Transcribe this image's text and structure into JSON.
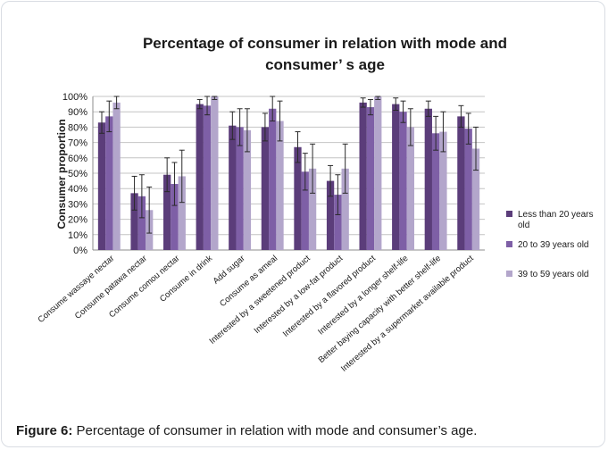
{
  "chart_data": {
    "type": "bar",
    "title": "Percentage of consumer in relation with mode and consumer’ s age",
    "title_lines": [
      "Percentage of consumer in relation with mode and",
      "consumer’ s age"
    ],
    "ylabel": "Consumer proportion",
    "xlabel": "",
    "ylim": [
      0,
      100
    ],
    "yticks": [
      "0%",
      "10%",
      "20%",
      "30%",
      "40%",
      "50%",
      "60%",
      "70%",
      "80%",
      "90%",
      "100%"
    ],
    "grid": true,
    "legend_position": "right",
    "error_bars": true,
    "categories": [
      "Consume wassaye nectar",
      "Consume patawa nectar",
      "Consume comou nectar",
      "Consume in drink",
      "Add sugar",
      "Consume as ameal",
      "Interested by a sweetened product",
      "Interested by a low-fat product",
      "Interested by a flavored product",
      "Interested by a longer shelf-life",
      "Better baying capacity with better shelf-life",
      "Interested by a supermarket available product"
    ],
    "series": [
      {
        "name": "Less than 20 years old",
        "name_lines": [
          "Less than 20 years",
          "old"
        ],
        "color": "#5b3d7a",
        "values": [
          83,
          37,
          49,
          95,
          81,
          80,
          67,
          45,
          96,
          95,
          92,
          87
        ],
        "errors": [
          7,
          11,
          11,
          3,
          9,
          9,
          10,
          10,
          3,
          4,
          5,
          7
        ]
      },
      {
        "name": "20 to 39 years old",
        "name_lines": [
          "20 to 39 years old"
        ],
        "color": "#7e5fa6",
        "values": [
          87,
          35,
          43,
          94,
          80,
          92,
          51,
          36,
          93,
          90,
          76,
          79
        ],
        "errors": [
          10,
          14,
          14,
          6,
          12,
          8,
          12,
          13,
          5,
          7,
          11,
          10
        ]
      },
      {
        "name": "39 to 59 years old",
        "name_lines": [
          "39 to 59 years old"
        ],
        "color": "#b3a6cb",
        "values": [
          96,
          26,
          48,
          100,
          78,
          84,
          53,
          53,
          100,
          80,
          77,
          66
        ],
        "errors": [
          4,
          15,
          17,
          2,
          14,
          13,
          16,
          16,
          2,
          12,
          13,
          14
        ]
      }
    ]
  },
  "caption": {
    "label": "Figure 6:",
    "text": " Percentage of consumer in relation with mode and consumer’s age."
  }
}
